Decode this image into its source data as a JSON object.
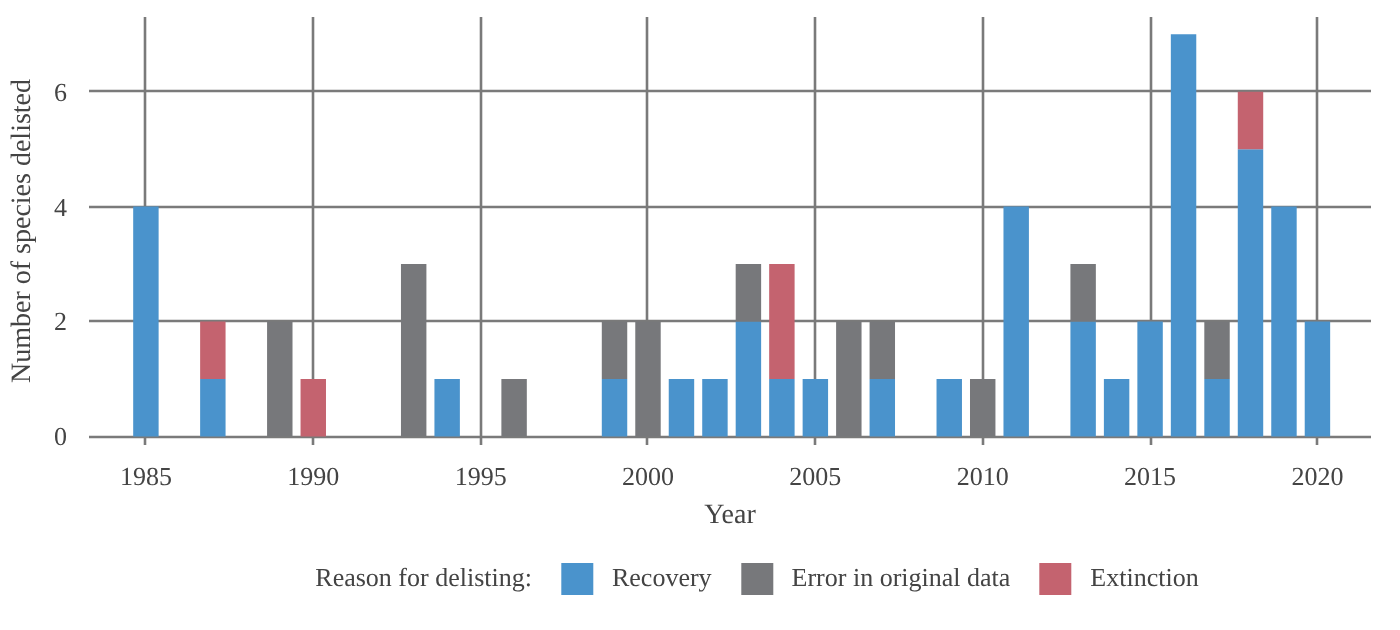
{
  "chart_data": {
    "type": "bar",
    "stacked": true,
    "xlabel": "Year",
    "ylabel": "Number of species delisted",
    "legend_title": "Reason for delisting:",
    "legend": "bottom",
    "grid": true,
    "x": [
      1985,
      1986,
      1987,
      1988,
      1989,
      1990,
      1991,
      1992,
      1993,
      1994,
      1995,
      1996,
      1997,
      1998,
      1999,
      2000,
      2001,
      2002,
      2003,
      2004,
      2005,
      2006,
      2007,
      2008,
      2009,
      2010,
      2011,
      2012,
      2013,
      2014,
      2015,
      2016,
      2017,
      2018,
      2019,
      2020
    ],
    "series": [
      {
        "name": "Recovery",
        "color": "#4a93cc",
        "values": [
          4,
          null,
          1,
          null,
          null,
          null,
          null,
          null,
          null,
          1,
          null,
          null,
          null,
          null,
          1,
          null,
          1,
          1,
          2,
          1,
          1,
          null,
          1,
          null,
          1,
          null,
          4,
          null,
          2,
          1,
          2,
          7,
          1,
          5,
          4,
          2
        ]
      },
      {
        "name": "Error in original data",
        "color": "#77787b",
        "values": [
          null,
          null,
          null,
          null,
          2,
          null,
          null,
          null,
          3,
          null,
          null,
          1,
          null,
          null,
          1,
          2,
          null,
          null,
          1,
          null,
          null,
          2,
          1,
          null,
          null,
          1,
          null,
          null,
          1,
          null,
          null,
          null,
          1,
          null,
          null,
          null
        ]
      },
      {
        "name": "Extinction",
        "color": "#c4636f",
        "values": [
          null,
          null,
          1,
          null,
          null,
          1,
          null,
          null,
          null,
          null,
          null,
          null,
          null,
          null,
          null,
          null,
          null,
          null,
          null,
          2,
          null,
          null,
          null,
          null,
          null,
          null,
          null,
          null,
          null,
          null,
          null,
          null,
          null,
          1,
          null,
          null
        ]
      }
    ],
    "xlim": [
      1983.3,
      2021.6
    ],
    "xticks": [
      1985,
      1990,
      1995,
      2000,
      2005,
      2010,
      2015,
      2020
    ],
    "ylim": [
      -0.15,
      7.3
    ],
    "yticks": [
      0,
      2,
      4,
      6
    ]
  }
}
